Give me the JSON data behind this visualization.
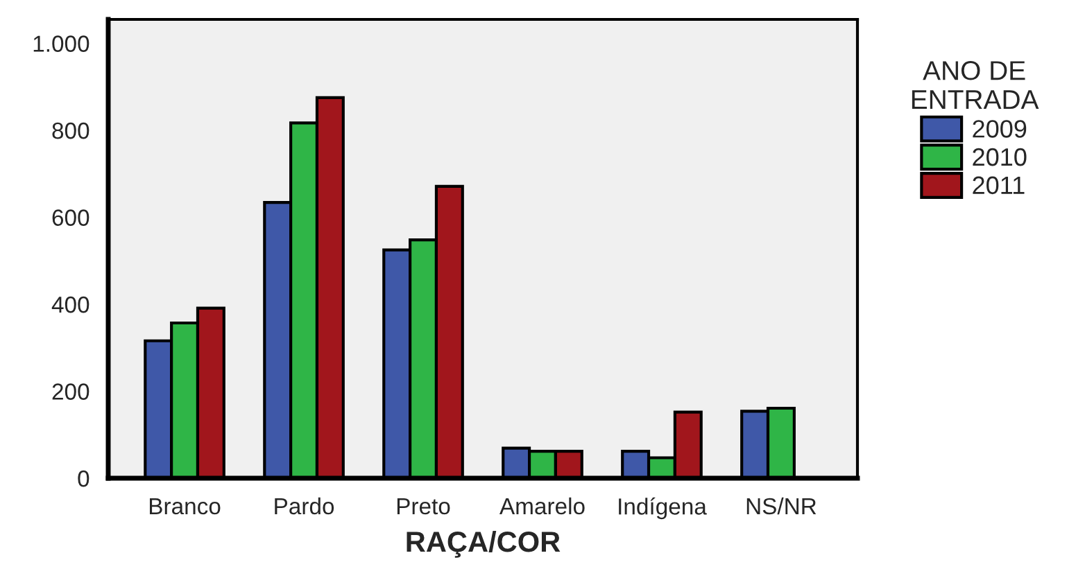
{
  "chart_data": {
    "type": "bar",
    "xlabel": "RAÇA/COR",
    "legend_title": "ANO DE\nENTRADA",
    "categories": [
      "Branco",
      "Pardo",
      "Preto",
      "Amarelo",
      "Indígena",
      "NS/NR"
    ],
    "series": [
      {
        "name": "2009",
        "color": "#3f58a8",
        "values": [
          316,
          634,
          525,
          69,
          62,
          154
        ]
      },
      {
        "name": "2010",
        "color": "#2fb547",
        "values": [
          357,
          817,
          548,
          62,
          47,
          161
        ]
      },
      {
        "name": "2011",
        "color": "#a1161c",
        "values": [
          391,
          875,
          671,
          62,
          152,
          null
        ]
      }
    ],
    "ylim": [
      0,
      1055
    ],
    "yticks": [
      0,
      200,
      400,
      600,
      800,
      {
        "value": 1000,
        "label": "1.000"
      }
    ],
    "grid": false,
    "legend": "right"
  }
}
